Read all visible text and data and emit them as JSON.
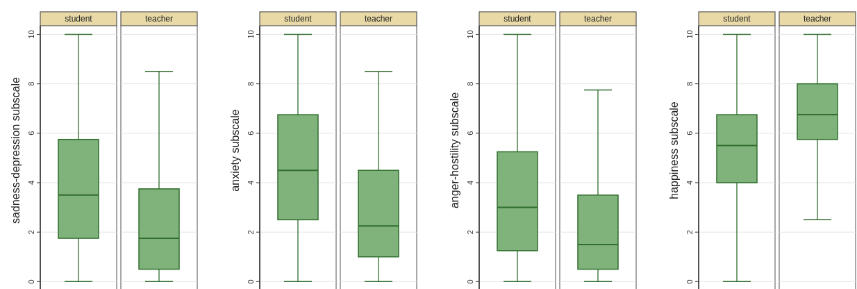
{
  "chart_data": [
    {
      "type": "box",
      "ylabel": "sadness-depression subscale",
      "categories": [
        "student",
        "teacher"
      ],
      "color": "#80b27c",
      "ylim": [
        -0.3,
        10.35
      ],
      "yticks": [
        0,
        2,
        4,
        6,
        8,
        10
      ],
      "grid": "y",
      "boxes": [
        {
          "low": 0,
          "q1": 1.75,
          "median": 3.5,
          "q3": 5.75,
          "high": 10
        },
        {
          "low": 0,
          "q1": 0.5,
          "median": 1.75,
          "q3": 3.75,
          "high": 8.5
        }
      ]
    },
    {
      "type": "box",
      "ylabel": "anxiety subscale",
      "categories": [
        "student",
        "teacher"
      ],
      "color": "#80b27c",
      "ylim": [
        -0.3,
        10.35
      ],
      "yticks": [
        0,
        2,
        4,
        6,
        8,
        10
      ],
      "grid": "y",
      "boxes": [
        {
          "low": 0,
          "q1": 2.5,
          "median": 4.5,
          "q3": 6.75,
          "high": 10
        },
        {
          "low": 0,
          "q1": 1,
          "median": 2.25,
          "q3": 4.5,
          "high": 8.5
        }
      ]
    },
    {
      "type": "box",
      "ylabel": "anger-hostility subscale",
      "categories": [
        "student",
        "teacher"
      ],
      "color": "#80b27c",
      "ylim": [
        -0.3,
        10.35
      ],
      "yticks": [
        0,
        2,
        4,
        6,
        8,
        10
      ],
      "grid": "y",
      "boxes": [
        {
          "low": 0,
          "q1": 1.25,
          "median": 3,
          "q3": 5.25,
          "high": 10
        },
        {
          "low": 0,
          "q1": 0.5,
          "median": 1.5,
          "q3": 3.5,
          "high": 7.75
        }
      ]
    },
    {
      "type": "box",
      "ylabel": "happiness subscale",
      "categories": [
        "student",
        "teacher"
      ],
      "color": "#80b27c",
      "ylim": [
        -0.3,
        10.35
      ],
      "yticks": [
        0,
        2,
        4,
        6,
        8,
        10
      ],
      "grid": "y",
      "boxes": [
        {
          "low": 0,
          "q1": 4,
          "median": 5.5,
          "q3": 6.75,
          "high": 10
        },
        {
          "low": 2.5,
          "q1": 5.75,
          "median": 6.75,
          "q3": 8,
          "high": 10
        }
      ]
    }
  ]
}
